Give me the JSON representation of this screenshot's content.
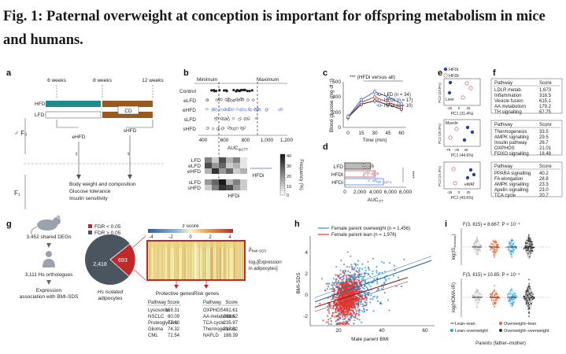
{
  "title": "Fig. 1: Paternal overweight at conception is important for offspring metabolism in mice and humans.",
  "panel_letters": [
    "a",
    "b",
    "c",
    "d",
    "e",
    "f",
    "g",
    "h",
    "i"
  ],
  "a": {
    "weeks": [
      "6 weeks",
      "8 weeks",
      "12 weeks"
    ],
    "diets": [
      "HFD",
      "LFD"
    ],
    "cd": "CD",
    "groups": [
      "eHFD",
      "sHFD"
    ],
    "f0": "♂ F₀",
    "f1": "F₁",
    "female": "♀",
    "outcomes": [
      "Body weight and composition",
      "Glucose tolerance",
      "Insulin sensitivity"
    ]
  },
  "b": {
    "minimum": "Minimum",
    "maximum": "Maximum",
    "rows": [
      "Control",
      "eLFD",
      "eHFD",
      "sLFD",
      "sHFD"
    ],
    "xticks": [
      "400",
      "600",
      "800",
      "1,000",
      "1,200"
    ],
    "xlabel": "AUC",
    "xlabel_sub": "ipGTT",
    "heat_rows": [
      "LFD",
      "eLFD",
      "eHFD",
      "sLFD",
      "sHFD"
    ],
    "hfdi": "HFDi",
    "freq_label": "Frequency (%)",
    "freq_ticks": [
      "40",
      "30",
      "20",
      "10",
      "0"
    ],
    "heat": [
      [
        0.5,
        0.2,
        0.7,
        0.3,
        0.5,
        0.1
      ],
      [
        0.7,
        0.4,
        0.6,
        0.2,
        0.3,
        0.1
      ],
      [
        0.3,
        0.8,
        0.4,
        0.6,
        0.2,
        0.3
      ],
      [
        0.4,
        0.6,
        0.9,
        0.3,
        0.5,
        0.2
      ],
      [
        0.2,
        0.5,
        0.8,
        0.7,
        0.4,
        0.2
      ]
    ]
  },
  "c": {
    "title": "*** (HFDi versus all)",
    "ylabel": "Blood glucose (mg dl⁻¹)",
    "xlabel": "Time (min)",
    "xticks": [
      "0",
      "15",
      "30",
      "45",
      "60"
    ],
    "yticks": [
      "0",
      "200",
      "400",
      "600"
    ],
    "legend": [
      "LFD (n = 34)",
      "HFDt (n = 17)",
      "HFDi (n = 10)"
    ]
  },
  "chart_data": [
    {
      "type": "line",
      "x": [
        0,
        15,
        30,
        45,
        60
      ],
      "series": [
        {
          "name": "LFD (n = 34)",
          "values": [
            130,
            305,
            350,
            300,
            240
          ]
        },
        {
          "name": "HFDt (n = 17)",
          "values": [
            135,
            330,
            400,
            330,
            270
          ]
        },
        {
          "name": "HFDi (n = 10)",
          "values": [
            140,
            365,
            470,
            400,
            310
          ]
        }
      ],
      "xlabel": "Time (min)",
      "ylabel": "Blood glucose (mg dl⁻¹)",
      "ylim": [
        0,
        600
      ]
    },
    {
      "type": "bar",
      "categories": [
        "LFD",
        "HFDt",
        "HFDi"
      ],
      "values": [
        3400,
        4000,
        5100
      ],
      "xlabel": "AUC ITT",
      "xlim": [
        0,
        8000
      ],
      "annotation": "****"
    },
    {
      "type": "scatter",
      "series": [
        {
          "name": "Female parent overweight (n = 1,456)"
        },
        {
          "name": "Female parent lean (n = 1,976)"
        }
      ],
      "xlabel": "Male parent BMI",
      "ylabel": "BMI-SDS",
      "xticks": [
        20,
        40,
        60
      ],
      "yticks": [
        -2,
        0,
        2,
        4
      ],
      "ylim": [
        -3,
        5
      ]
    }
  ],
  "d": {
    "categories": [
      "LFD",
      "HFDt",
      "HFDi"
    ],
    "xticks": [
      "0",
      "2,000",
      "4,000",
      "6,000",
      "8,000"
    ],
    "xlabel": "AUC",
    "xlabel_sub": "ITT",
    "stars": "****"
  },
  "e": {
    "legend": [
      "HFDi",
      "HFDt"
    ],
    "tissues": [
      "Liver",
      "Muscle",
      "eWAT"
    ],
    "xlabels": [
      "PC1 (21.4%)",
      "PC1 (44.6%)",
      "PC1 (43.6%)"
    ],
    "ylabels": [
      "PC2 (23.8%)",
      "PC2 (25.0%)",
      "PC2 (21.9%)"
    ],
    "xticks_1": [
      "-50",
      "-25",
      "0",
      "25",
      "50"
    ],
    "xticks_2": [
      "-75",
      "-50",
      "-25",
      "0",
      "25",
      "50"
    ],
    "xticks_3": [
      "-50",
      "-25",
      "0",
      "25",
      "50"
    ]
  },
  "f": {
    "header": [
      "Pathway",
      "Score"
    ],
    "tables": [
      [
        [
          "LDLR metab.",
          "1,673"
        ],
        [
          "Inflammation",
          "318.5"
        ],
        [
          "Vesicle fusion",
          "615.1"
        ],
        [
          "AA metabolism",
          "179.2"
        ],
        [
          "TH signalling",
          "67.75"
        ]
      ],
      [
        [
          "Thermogenesis",
          "33.5"
        ],
        [
          "AMPK signalling",
          "29.5"
        ],
        [
          "Insulin pathway",
          "26.7"
        ],
        [
          "OXPHOS",
          "21.01"
        ],
        [
          "FOXO signalling",
          "18.48"
        ]
      ],
      [
        [
          "PPARA signalling",
          "40.2"
        ],
        [
          "FA elongation",
          "28.8"
        ],
        [
          "AMPK signalling",
          "23.3"
        ],
        [
          "Apelin signalling",
          "23.0"
        ],
        [
          "TCA cycle",
          "20.7"
        ]
      ]
    ]
  },
  "g": {
    "shared": "3,452 shared DEGs",
    "orthologues": "3,111 Hs orthologues",
    "expression": [
      "Expression",
      "association with BMI-SDS"
    ],
    "fdr_lt": "FDR < 0.05",
    "fdr_gt": "FDR > 0.05",
    "pie_big": "2,418",
    "pie_small": "693",
    "pie_caption": [
      "Hs isolated",
      "adipocytes"
    ],
    "zscore": "z score",
    "z_ticks": [
      "-4",
      "-2",
      "0",
      "2",
      "4"
    ],
    "beta": "β",
    "beta_sub": "BMI-SDS",
    "log_label": [
      "log₂[Expression",
      "in adipocytes]"
    ],
    "protective": "Protective genes",
    "risk": "Risk genes",
    "header": [
      "Pathway",
      "Score"
    ],
    "prot_table": [
      [
        "Lysosome",
        "159.31"
      ],
      [
        "NSCLC",
        "80.09"
      ],
      [
        "Proteoglycans",
        "77.60"
      ],
      [
        "Glioma",
        "74.32"
      ],
      [
        "CML",
        "72.54"
      ]
    ],
    "risk_table": [
      [
        "OXPHOS",
        "491.61"
      ],
      [
        "AA metabolism",
        "268.62"
      ],
      [
        "TCA cycle",
        "235.97"
      ],
      [
        "Thermogenesis",
        "217.82"
      ],
      [
        "NAFLD",
        "188.39"
      ]
    ]
  },
  "h": {
    "legend": [
      "Female parent overweight (n = 1,456)",
      "Female parent lean (n = 1,976)"
    ],
    "ylabel": "BMI-SDS",
    "xlabel": "Male parent BMI",
    "xticks": [
      "20",
      "40",
      "60"
    ],
    "yticks": [
      "-2",
      "0",
      "2",
      "4"
    ],
    "colors": {
      "overweight": "#2b8fd6",
      "lean": "#e8362a"
    }
  },
  "i": {
    "stat1": "F(3, 815) = 8.667; P < 10⁻⁴",
    "stat2": "F(3, 815) = 10.85; P < 10⁻⁴",
    "ylabel1": "log(IS",
    "ylabel1_sub": "Matsuda",
    "ylabel1_end": ")",
    "ylabel2": "log(HOMA-IR)",
    "legend": [
      "Lean–lean",
      "Overweight–lean",
      "Lean–overweight",
      "Overweight–overweight"
    ],
    "caption": "Parents (father–mother)"
  }
}
